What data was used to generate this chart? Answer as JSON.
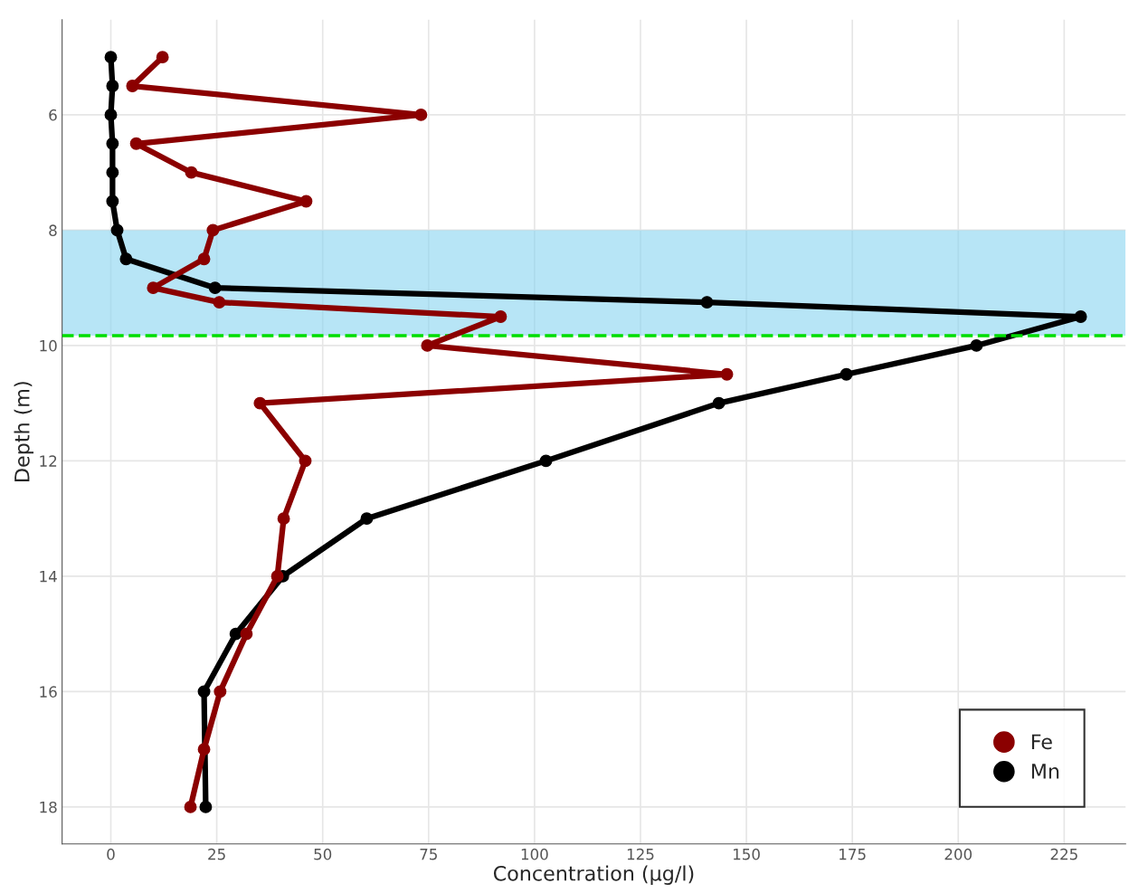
{
  "chart_data": {
    "type": "line",
    "xlabel": "Concentration (µg/l)",
    "ylabel": "Depth (m)",
    "xlim": [
      -11.5,
      239.5
    ],
    "xticks": [
      0,
      25,
      50,
      75,
      100,
      125,
      150,
      175,
      200,
      225
    ],
    "ylim": [
      18.64,
      4.35
    ],
    "yticks": [
      6,
      8,
      10,
      12,
      14,
      16,
      18
    ],
    "grid": true,
    "legend": "bottom right",
    "marker": "circle",
    "line_style": "solid",
    "series": [
      {
        "name": "Fe",
        "color": "#8b0000",
        "x": [
          12.2,
          5.1,
          73.2,
          6.0,
          19.0,
          46.1,
          24.1,
          22.0,
          10.0,
          25.6,
          92.0,
          74.7,
          145.4,
          35.2,
          45.9,
          40.8,
          39.3,
          32.0,
          25.8,
          22.0,
          18.8
        ],
        "values": [
          5,
          5.5,
          6,
          6.5,
          7,
          7.5,
          8,
          8.5,
          9,
          9.25,
          9.5,
          10,
          10.5,
          11,
          12,
          13,
          14,
          15,
          16,
          17,
          18
        ]
      },
      {
        "name": "Mn",
        "color": "#000000",
        "x": [
          0,
          0.4,
          0,
          0.4,
          0.4,
          0.4,
          1.5,
          3.6,
          24.6,
          140.7,
          228.9,
          204.3,
          173.6,
          143.5,
          102.7,
          60.4,
          40.6,
          29.5,
          22.0,
          22.4
        ],
        "values": [
          5,
          5.5,
          6,
          6.5,
          7,
          7.5,
          8,
          8.5,
          9,
          9.25,
          9.5,
          10,
          10.5,
          11,
          12,
          13,
          14,
          15,
          16,
          18
        ]
      }
    ],
    "bands": [
      {
        "axis": "y",
        "from": 8,
        "to": 9.83,
        "color": "#87d3f0"
      }
    ],
    "ref_lines": [
      {
        "axis": "y",
        "value": 9.83,
        "color": "#00dd00",
        "line_style": "dashed"
      }
    ]
  }
}
